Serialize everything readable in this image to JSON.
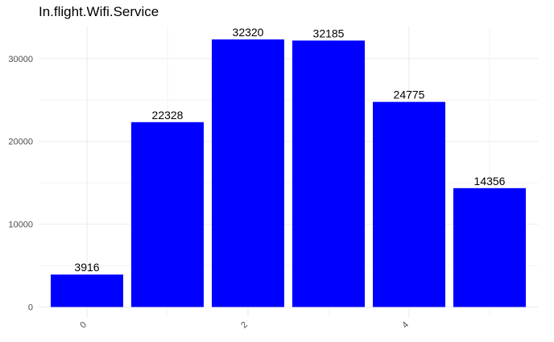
{
  "chart_data": {
    "type": "bar",
    "title": "In.flight.Wifi.Service",
    "xlabel": "",
    "ylabel": "",
    "categories": [
      "0",
      "1",
      "2",
      "3",
      "4",
      "5"
    ],
    "values": [
      3916,
      22328,
      32320,
      32185,
      24775,
      14356
    ],
    "data_labels": [
      "3916",
      "22328",
      "32320",
      "32185",
      "24775",
      "14356"
    ],
    "x_tick_labels": [
      "0",
      "2",
      "4"
    ],
    "x_tick_values": [
      0,
      2,
      4
    ],
    "y_tick_labels": [
      "0",
      "10000",
      "20000",
      "30000"
    ],
    "y_tick_values": [
      0,
      10000,
      20000,
      30000
    ],
    "ylim": [
      0,
      33936
    ],
    "grid": true,
    "legend": "none",
    "colors": {
      "bar": "#0000ff",
      "grid_major": "#ebebeb",
      "grid_minor": "#f3f3f3",
      "tick_text": "#4d4d4d",
      "label_text": "#000000"
    }
  }
}
